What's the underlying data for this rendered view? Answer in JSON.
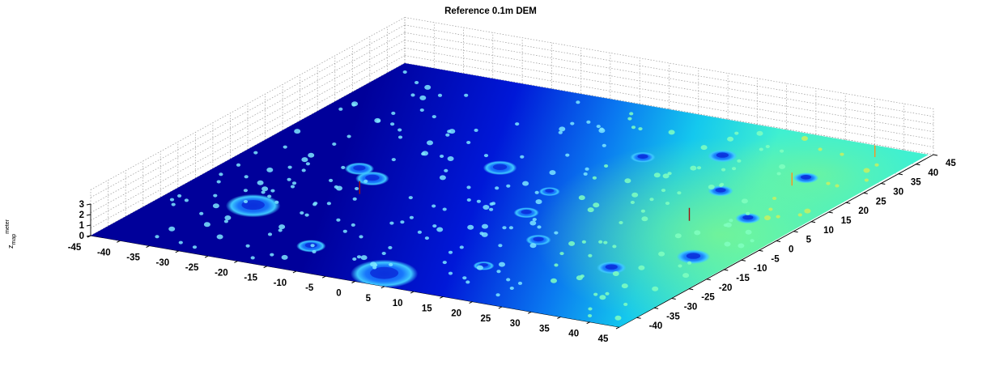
{
  "chart_data": {
    "type": "surface",
    "title": "Reference 0.1m DEM",
    "zlabel": {
      "main": "z",
      "sub": "map",
      "sup": "meter"
    },
    "xlim": [
      -45,
      45
    ],
    "ylim": [
      -45,
      45
    ],
    "zlim": [
      0,
      3
    ],
    "x_ticks": [
      "-45",
      "-40",
      "-35",
      "-30",
      "-25",
      "-20",
      "-15",
      "-10",
      "-5",
      "0",
      "5",
      "10",
      "15",
      "20",
      "25",
      "30",
      "35",
      "40",
      "45"
    ],
    "y_ticks": [
      "-40",
      "-35",
      "-30",
      "-25",
      "-20",
      "-15",
      "-10",
      "-5",
      "0",
      "5",
      "10",
      "15",
      "20",
      "25",
      "30",
      "35",
      "40",
      "45"
    ],
    "z_ticks": [
      "0",
      "1",
      "2",
      "3"
    ],
    "grid": true,
    "colormap": [
      "#00008f",
      "#0000ff",
      "#0080ff",
      "#00ffff",
      "#80ff80",
      "#ffff00",
      "#ff8000"
    ],
    "features": [
      {
        "kind": "crater",
        "x": -31,
        "y": -22,
        "r": 6.5
      },
      {
        "kind": "crater",
        "x": 2,
        "y": -40,
        "r": 8
      },
      {
        "kind": "crater",
        "x": -22,
        "y": -3,
        "r": 4
      },
      {
        "kind": "crater",
        "x": -14,
        "y": -34,
        "r": 3.5
      },
      {
        "kind": "crater",
        "x": -26,
        "y": 0,
        "r": 3.5
      },
      {
        "kind": "crater",
        "x": -8,
        "y": 10,
        "r": 4
      },
      {
        "kind": "crater",
        "x": 14,
        "y": -16,
        "r": 3
      },
      {
        "kind": "crater",
        "x": 13,
        "y": -30,
        "r": 2.5
      },
      {
        "kind": "crater",
        "x": 6,
        "y": -6,
        "r": 3
      },
      {
        "kind": "crater",
        "x": 30,
        "y": -22,
        "r": 3.5
      },
      {
        "kind": "crater",
        "x": 4,
        "y": 4,
        "r": 2.5
      },
      {
        "kind": "crater",
        "x": 26,
        "y": 16,
        "r": 3
      },
      {
        "kind": "crater",
        "x": 38,
        "y": -12,
        "r": 4
      },
      {
        "kind": "crater",
        "x": 36,
        "y": 7,
        "r": 3
      },
      {
        "kind": "crater",
        "x": 18,
        "y": 30,
        "r": 3.5
      },
      {
        "kind": "crater",
        "x": 8,
        "y": 24,
        "r": 3
      },
      {
        "kind": "crater",
        "x": 34,
        "y": 27,
        "r": 3
      }
    ]
  }
}
